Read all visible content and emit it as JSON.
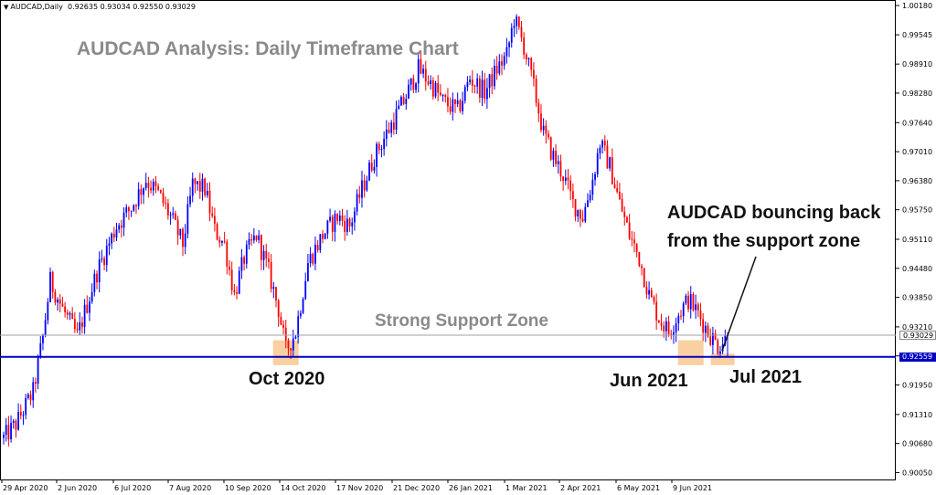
{
  "header": {
    "symbol": "AUDCAD,Daily",
    "ohlc": "0.92635 0.93034 0.92550 0.93029"
  },
  "title": "AUDCAD Analysis: Daily Timeframe Chart",
  "annotations": {
    "support_zone": "Strong Support Zone",
    "oct": "Oct 2020",
    "jun": "Jun 2021",
    "jul": "Jul 2021",
    "bounce_line1": "AUDCAD bouncing back",
    "bounce_line2": "from the support zone"
  },
  "colors": {
    "bull": "#0000ff",
    "bear": "#ff0000",
    "support_line": "#0000c0",
    "zone": "#f7c890",
    "grid_text": "#000000"
  },
  "chart_data": {
    "type": "candlestick",
    "symbol": "AUDCAD",
    "timeframe": "Daily",
    "ylim": [
      0.899,
      1.003
    ],
    "yticks": [
      "1.00180",
      "0.99545",
      "0.98910",
      "0.98280",
      "0.97640",
      "0.97010",
      "0.96380",
      "0.95750",
      "0.95110",
      "0.94480",
      "0.93850",
      "0.93210",
      "0.92580",
      "0.91950",
      "0.91310",
      "0.90680",
      "0.90050"
    ],
    "xticks": [
      "29 Apr 2020",
      "2 Jun 2020",
      "6 Jul 2020",
      "7 Aug 2020",
      "10 Sep 2020",
      "14 Oct 2020",
      "17 Nov 2020",
      "21 Dec 2020",
      "26 Jan 2021",
      "1 Mar 2021",
      "2 Apr 2021",
      "6 May 2021",
      "9 Jun 2021"
    ],
    "support_level": "0.92559",
    "support_value": 0.92559,
    "current_price": "0.93029",
    "current_value": 0.93029,
    "close_path": [
      [
        0,
        0.908
      ],
      [
        5,
        0.911
      ],
      [
        12,
        0.918
      ],
      [
        16,
        0.93
      ],
      [
        19,
        0.942
      ],
      [
        24,
        0.936
      ],
      [
        30,
        0.93
      ],
      [
        38,
        0.944
      ],
      [
        46,
        0.954
      ],
      [
        52,
        0.958
      ],
      [
        58,
        0.964
      ],
      [
        63,
        0.961
      ],
      [
        68,
        0.956
      ],
      [
        73,
        0.95
      ],
      [
        77,
        0.963
      ],
      [
        82,
        0.962
      ],
      [
        86,
        0.953
      ],
      [
        90,
        0.95
      ],
      [
        94,
        0.939
      ],
      [
        98,
        0.947
      ],
      [
        103,
        0.952
      ],
      [
        108,
        0.944
      ],
      [
        112,
        0.936
      ],
      [
        115,
        0.927
      ],
      [
        119,
        0.931
      ],
      [
        124,
        0.946
      ],
      [
        130,
        0.952
      ],
      [
        136,
        0.956
      ],
      [
        141,
        0.954
      ],
      [
        146,
        0.962
      ],
      [
        151,
        0.969
      ],
      [
        157,
        0.975
      ],
      [
        163,
        0.981
      ],
      [
        169,
        0.988
      ],
      [
        174,
        0.985
      ],
      [
        179,
        0.981
      ],
      [
        185,
        0.979
      ],
      [
        190,
        0.986
      ],
      [
        196,
        0.983
      ],
      [
        201,
        0.988
      ],
      [
        205,
        0.991
      ],
      [
        208,
        0.999
      ],
      [
        212,
        0.993
      ],
      [
        216,
        0.984
      ],
      [
        220,
        0.974
      ],
      [
        224,
        0.969
      ],
      [
        228,
        0.965
      ],
      [
        232,
        0.959
      ],
      [
        236,
        0.956
      ],
      [
        240,
        0.964
      ],
      [
        243,
        0.972
      ],
      [
        247,
        0.967
      ],
      [
        251,
        0.959
      ],
      [
        255,
        0.952
      ],
      [
        259,
        0.947
      ],
      [
        263,
        0.939
      ],
      [
        267,
        0.934
      ],
      [
        271,
        0.931
      ],
      [
        275,
        0.935
      ],
      [
        279,
        0.938
      ],
      [
        283,
        0.935
      ],
      [
        287,
        0.931
      ],
      [
        291,
        0.928
      ],
      [
        295,
        0.93
      ]
    ],
    "zones": [
      {
        "label": "Oct 2020",
        "center": 115,
        "low": 0.9238,
        "high": 0.9292
      },
      {
        "label": "Jun 2021",
        "center": 280,
        "low": 0.9238,
        "high": 0.9292
      },
      {
        "label": "Jul 2021",
        "center": 293,
        "low": 0.9238,
        "high": 0.9263
      }
    ]
  }
}
